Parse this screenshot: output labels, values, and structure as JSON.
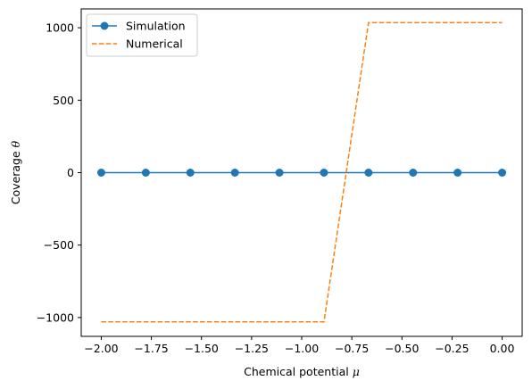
{
  "chart_data": {
    "type": "line",
    "xlabel": "Chemical potential",
    "xlabel_symbol": "μ",
    "ylabel": "Coverage",
    "ylabel_symbol": "θ",
    "xlim": [
      -2.1,
      0.1
    ],
    "ylim": [
      -1130,
      1130
    ],
    "x_ticks": [
      -2.0,
      -1.75,
      -1.5,
      -1.25,
      -1.0,
      -0.75,
      -0.5,
      -0.25,
      0.0
    ],
    "x_tick_labels": [
      "−2.00",
      "−1.75",
      "−1.50",
      "−1.25",
      "−1.00",
      "−0.75",
      "−0.50",
      "−0.25",
      "0.00"
    ],
    "y_ticks": [
      -1000,
      -500,
      0,
      500,
      1000
    ],
    "y_tick_labels": [
      "−1000",
      "−500",
      "0",
      "500",
      "1000"
    ],
    "grid": false,
    "legend_position": "top-left",
    "series": [
      {
        "name": "Simulation",
        "style": "line-markers",
        "color": "#1f77b4",
        "x": [
          -2.0,
          -1.7778,
          -1.5556,
          -1.3333,
          -1.1111,
          -0.8889,
          -0.6667,
          -0.4444,
          -0.2222,
          0.0
        ],
        "y": [
          0,
          0,
          0,
          0,
          0,
          0,
          0,
          0,
          0,
          0
        ]
      },
      {
        "name": "Numerical",
        "style": "dashed",
        "color": "#ff7f0e",
        "x": [
          -2.0,
          -1.7778,
          -1.5556,
          -1.3333,
          -1.1111,
          -0.8889,
          -0.6667,
          -0.4444,
          -0.2222,
          0.0
        ],
        "y": [
          -1030,
          -1030,
          -1030,
          -1030,
          -1030,
          -1030,
          1035,
          1035,
          1035,
          1035
        ]
      }
    ]
  }
}
